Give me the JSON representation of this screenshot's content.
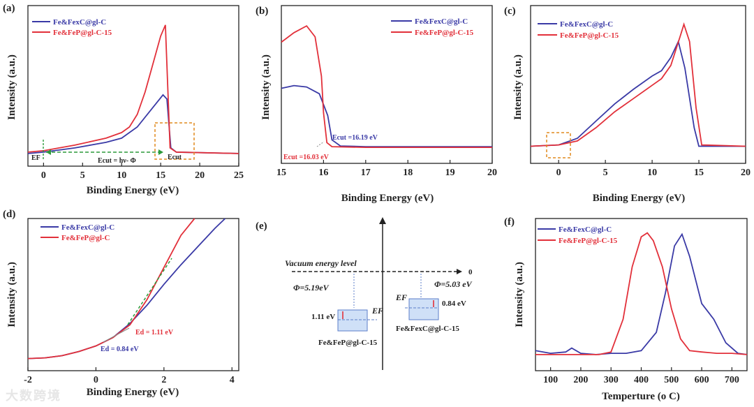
{
  "colors": {
    "blue": "#3a3aa6",
    "red": "#e2303a",
    "green": "#2c9a3a",
    "orange": "#e08a1e",
    "axis": "#222222"
  },
  "panel_labels": [
    "(a)",
    "(b)",
    "(c)",
    "(d)",
    "(e)",
    "(f)"
  ],
  "watermark": "大数跨境",
  "chart_data": [
    {
      "id": "a",
      "type": "line",
      "xlabel": "Binding Energy (eV)",
      "ylabel": "Intensity (a.u.)",
      "xlim": [
        -2,
        25
      ],
      "ylim": [
        0,
        1
      ],
      "xticks": [
        0,
        5,
        10,
        15,
        20,
        25
      ],
      "legend": [
        "Fe&FexC@gl-C",
        "Fe&FeP@gl-C-15"
      ],
      "series": [
        {
          "name": "Fe&FexC@gl-C",
          "color": "blue",
          "x": [
            -2,
            0,
            4,
            8,
            10,
            12,
            14,
            15.3,
            15.8,
            16.3,
            17,
            25
          ],
          "y": [
            0.01,
            0.02,
            0.05,
            0.09,
            0.12,
            0.2,
            0.34,
            0.43,
            0.4,
            0.05,
            0.02,
            0.01
          ]
        },
        {
          "name": "Fe&FeP@gl-C-15",
          "color": "red",
          "x": [
            -2,
            0,
            4,
            8,
            10,
            11,
            12,
            13,
            14,
            15,
            15.6,
            16.2,
            17,
            25
          ],
          "y": [
            0.02,
            0.03,
            0.07,
            0.12,
            0.16,
            0.2,
            0.29,
            0.45,
            0.65,
            0.85,
            0.93,
            0.05,
            0.02,
            0.01
          ]
        }
      ],
      "annotations": {
        "ef": "EF",
        "arrow_label": "Ecut = hν- Φ",
        "ecut": "Ecut"
      }
    },
    {
      "id": "b",
      "type": "line",
      "xlabel": "Binding Energy (eV)",
      "ylabel": "Intensity (a.u.)",
      "xlim": [
        15,
        20
      ],
      "ylim": [
        0,
        1
      ],
      "xticks": [
        15,
        16,
        17,
        18,
        19,
        20
      ],
      "legend": [
        "Fe&FexC@gl-C",
        "Fe&FeP@gl-C-15"
      ],
      "series": [
        {
          "name": "Fe&FexC@gl-C",
          "color": "blue",
          "x": [
            15,
            15.3,
            15.6,
            15.9,
            16.1,
            16.2,
            16.4,
            17,
            20
          ],
          "y": [
            0.46,
            0.48,
            0.47,
            0.42,
            0.26,
            0.08,
            0.035,
            0.03,
            0.03
          ]
        },
        {
          "name": "Fe&FeP@gl-C-15",
          "color": "red",
          "x": [
            15,
            15.3,
            15.6,
            15.8,
            15.95,
            16.0,
            16.08,
            16.2,
            17,
            20
          ],
          "y": [
            0.8,
            0.87,
            0.92,
            0.84,
            0.55,
            0.28,
            0.06,
            0.03,
            0.025,
            0.025
          ]
        }
      ],
      "annotations": {
        "blue_cut": "Ecut =16.19 eV",
        "red_cut": "Ecut =16.03 eV"
      }
    },
    {
      "id": "c",
      "type": "line",
      "xlabel": "Binding Energy (eV)",
      "ylabel": "Intensity (a.u.)",
      "xlim": [
        -3,
        20
      ],
      "ylim": [
        0,
        1
      ],
      "xticks": [
        0,
        5,
        10,
        15,
        20
      ],
      "legend": [
        "Fe&FexC@gl-C",
        "Fe&FeP@gl-C-15"
      ],
      "series": [
        {
          "name": "Fe&FexC@gl-C",
          "color": "blue",
          "x": [
            -3,
            0,
            2,
            4,
            6,
            8,
            10,
            11,
            12,
            12.8,
            13.5,
            14.5,
            15,
            20
          ],
          "y": [
            0.01,
            0.02,
            0.07,
            0.2,
            0.33,
            0.44,
            0.54,
            0.58,
            0.68,
            0.8,
            0.6,
            0.15,
            0.01,
            0.01
          ]
        },
        {
          "name": "Fe&FeP@gl-C-15",
          "color": "red",
          "x": [
            -3,
            0,
            2,
            4,
            6,
            8,
            10,
            11,
            12,
            13,
            13.4,
            14,
            14.7,
            15.3,
            20
          ],
          "y": [
            0.01,
            0.02,
            0.05,
            0.15,
            0.27,
            0.37,
            0.47,
            0.52,
            0.62,
            0.84,
            0.93,
            0.8,
            0.3,
            0.02,
            0.01
          ]
        }
      ]
    },
    {
      "id": "d",
      "type": "line",
      "xlabel": "Binding Energy (eV)",
      "ylabel": "Intensity (a.u.)",
      "xlim": [
        -2,
        4.2
      ],
      "ylim": [
        0,
        1
      ],
      "xticks": [
        -2,
        0,
        2,
        4
      ],
      "legend": [
        "Fe&FexC@gl-C",
        "Fe&FeP@gl-C"
      ],
      "series": [
        {
          "name": "Fe&FexC@gl-C",
          "color": "blue",
          "x": [
            -2,
            -1.5,
            -1,
            -0.5,
            0,
            0.5,
            1,
            1.5,
            2,
            2.5,
            3,
            3.5,
            3.8
          ],
          "y": [
            0.0,
            0.005,
            0.02,
            0.05,
            0.09,
            0.15,
            0.25,
            0.38,
            0.53,
            0.67,
            0.8,
            0.93,
            1.0
          ]
        },
        {
          "name": "Fe&FeP@gl-C",
          "color": "red",
          "x": [
            -2,
            -1.5,
            -1,
            -0.5,
            0,
            0.5,
            1,
            1.5,
            2,
            2.5,
            2.9
          ],
          "y": [
            0.0,
            0.005,
            0.02,
            0.05,
            0.09,
            0.15,
            0.24,
            0.42,
            0.65,
            0.88,
            1.0
          ]
        }
      ],
      "annotations": {
        "red_ed": "Ed = 1.11 eV",
        "blue_ed": "Ed = 0.84 eV"
      }
    },
    {
      "id": "e",
      "type": "diagram",
      "vacuum_label": "Vacuum energy level",
      "zero": "0",
      "left": {
        "phi": "Φ=5.19eV",
        "gap": "1.11 eV",
        "ef": "EF",
        "name": "Fe&FeP@gl-C-15"
      },
      "right": {
        "phi": "Φ=5.03 eV",
        "gap": "0.84 eV",
        "ef": "EF",
        "name": "Fe&FexC@gl-C-15"
      }
    },
    {
      "id": "f",
      "type": "line",
      "xlabel": "Temperture (o C)",
      "ylabel": "Intensity (a.u.)",
      "xlim": [
        50,
        750
      ],
      "ylim": [
        0,
        1
      ],
      "xticks": [
        100,
        200,
        300,
        400,
        500,
        600,
        700
      ],
      "legend": [
        "Fe&FexC@gl-C",
        "Fe&FeP@gl-C-15"
      ],
      "series": [
        {
          "name": "Fe&FexC@gl-C",
          "color": "blue",
          "x": [
            50,
            100,
            150,
            170,
            200,
            250,
            300,
            350,
            400,
            450,
            480,
            510,
            535,
            560,
            600,
            640,
            680,
            720,
            750
          ],
          "y": [
            0.06,
            0.04,
            0.05,
            0.08,
            0.04,
            0.03,
            0.04,
            0.04,
            0.06,
            0.2,
            0.5,
            0.86,
            0.95,
            0.78,
            0.42,
            0.3,
            0.12,
            0.04,
            0.03
          ]
        },
        {
          "name": "Fe&FeP@gl-C-15",
          "color": "red",
          "x": [
            50,
            100,
            200,
            260,
            300,
            340,
            370,
            400,
            420,
            440,
            470,
            500,
            530,
            560,
            600,
            650,
            700,
            750
          ],
          "y": [
            0.03,
            0.03,
            0.03,
            0.03,
            0.05,
            0.3,
            0.7,
            0.93,
            0.96,
            0.9,
            0.7,
            0.38,
            0.15,
            0.06,
            0.05,
            0.04,
            0.04,
            0.03
          ]
        }
      ]
    }
  ]
}
